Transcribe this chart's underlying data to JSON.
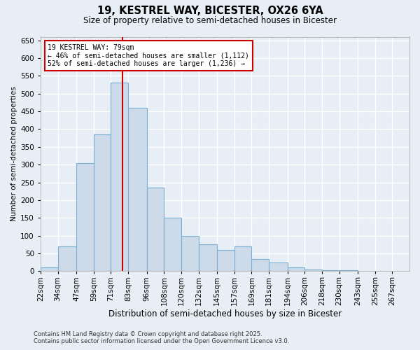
{
  "title_line1": "19, KESTREL WAY, BICESTER, OX26 6YA",
  "title_line2": "Size of property relative to semi-detached houses in Bicester",
  "xlabel": "Distribution of semi-detached houses by size in Bicester",
  "ylabel": "Number of semi-detached properties",
  "property_size": 79,
  "annotation_title": "19 KESTREL WAY: 79sqm",
  "annotation_line2": "← 46% of semi-detached houses are smaller (1,112)",
  "annotation_line3": "52% of semi-detached houses are larger (1,236) →",
  "bar_color": "#ccdaea",
  "bar_edge_color": "#7aafd4",
  "vline_color": "#cc0000",
  "annotation_box_color": "#cc0000",
  "background_color": "#e8eef5",
  "grid_color": "#ffffff",
  "footer_line1": "Contains HM Land Registry data © Crown copyright and database right 2025.",
  "footer_line2": "Contains public sector information licensed under the Open Government Licence v3.0.",
  "bin_labels": [
    "22sqm",
    "34sqm",
    "47sqm",
    "59sqm",
    "71sqm",
    "83sqm",
    "96sqm",
    "108sqm",
    "120sqm",
    "132sqm",
    "145sqm",
    "157sqm",
    "169sqm",
    "181sqm",
    "194sqm",
    "206sqm",
    "218sqm",
    "230sqm",
    "243sqm",
    "255sqm",
    "267sqm"
  ],
  "bin_edges": [
    22,
    34,
    47,
    59,
    71,
    83,
    96,
    108,
    120,
    132,
    145,
    157,
    169,
    181,
    194,
    206,
    218,
    230,
    243,
    255,
    267,
    279
  ],
  "counts": [
    10,
    70,
    305,
    385,
    530,
    460,
    235,
    150,
    100,
    75,
    60,
    70,
    35,
    25,
    10,
    5,
    2,
    2,
    1,
    0,
    1
  ],
  "ylim": [
    0,
    660
  ],
  "yticks": [
    0,
    50,
    100,
    150,
    200,
    250,
    300,
    350,
    400,
    450,
    500,
    550,
    600,
    650
  ]
}
